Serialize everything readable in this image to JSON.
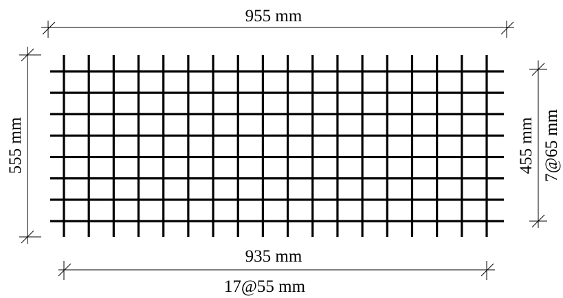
{
  "dimensions": {
    "top": "955 mm",
    "left": "555 mm",
    "right_total": "455 mm",
    "right_spacing": "7@65 mm",
    "bottom_total": "935 mm",
    "bottom_spacing": "17@55 mm"
  },
  "mesh": {
    "vertical_bar_count": 18,
    "horizontal_bar_count": 8
  }
}
